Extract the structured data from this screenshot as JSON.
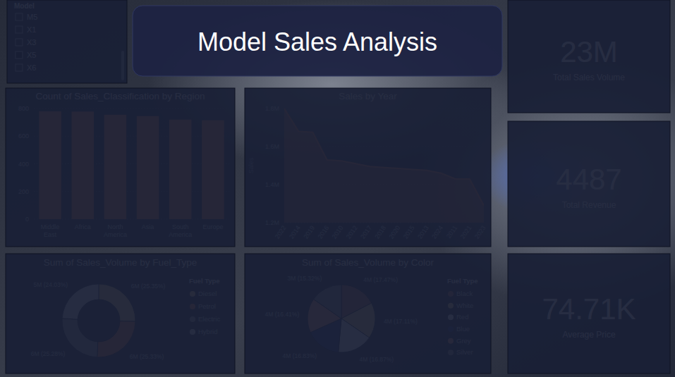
{
  "title": "Model Sales Analysis",
  "slicer": {
    "title": "Model",
    "items": [
      "M5",
      "X1",
      "X3",
      "X5",
      "X6"
    ],
    "selected": [
      "X5"
    ]
  },
  "kpis": [
    {
      "value": "23M",
      "label": "Total Sales Volume"
    },
    {
      "value": "4487",
      "label": "Total Revenue"
    },
    {
      "value": "74.71K",
      "label": "Average Price"
    }
  ],
  "chart_data": [
    {
      "type": "bar",
      "title": "Count of Sales_Classification by Region",
      "categories": [
        "Middle East",
        "Africa",
        "North America",
        "Asia",
        "South America",
        "Europe"
      ],
      "values": [
        780,
        778,
        755,
        745,
        720,
        715
      ],
      "color": "#ED8A5C",
      "ylim": [
        0,
        800
      ],
      "yticks": [
        0,
        200,
        400,
        600,
        800
      ],
      "grid": true
    },
    {
      "type": "area",
      "title": "Sales by Year",
      "y_label": "Sales",
      "categories": [
        "2022",
        "2014",
        "2019",
        "2016",
        "2010",
        "2012",
        "2017",
        "2018",
        "2020",
        "2015",
        "2013",
        "2024",
        "2011",
        "2021",
        "2023"
      ],
      "values": [
        1800000,
        1680000,
        1675000,
        1530000,
        1525000,
        1510000,
        1495000,
        1490000,
        1485000,
        1480000,
        1475000,
        1460000,
        1430000,
        1430000,
        1290000
      ],
      "color": "#ED8A5C",
      "ylim": [
        1200000,
        1800000
      ],
      "yticks": [
        {
          "value": 1200000,
          "label": "1.2M"
        },
        {
          "value": 1400000,
          "label": "1.4M"
        },
        {
          "value": 1600000,
          "label": "1.6M"
        },
        {
          "value": 1800000,
          "label": "1.8M"
        }
      ],
      "grid": true
    },
    {
      "type": "donut",
      "title": "Sum of Sales_Volume by Fuel_Type",
      "categories": [
        "Diesel",
        "Petrol",
        "Electric",
        "Hybrid"
      ],
      "values": [
        5779800,
        5775240,
        5763840,
        5478840
      ],
      "value_labels": [
        "6M (25.35%)",
        "6M (25.33%)",
        "6M (25.28%)",
        "5M (24.03%)"
      ],
      "colors": [
        "#F1DF94",
        "#EC8A55",
        "#A9A9A9",
        "#EFEFEF"
      ],
      "legend": "right",
      "legend_title": "Fuel Type",
      "data_labels": true
    },
    {
      "type": "pie",
      "title": "Sum of Sales_Volume by Color",
      "categories": [
        "Black",
        "White",
        "Red",
        "Blue",
        "Grey",
        "Silver"
      ],
      "values": [
        3983160,
        3901080,
        3846360,
        3837240,
        3741480,
        3492960
      ],
      "value_labels": [
        "4M (17.47%)",
        "4M (17.11%)",
        "4M (16.87%)",
        "4M (16.83%)",
        "4M (16.41%)",
        "3M (15.32%)"
      ],
      "colors": [
        "#B97A62",
        "#F1DF94",
        "#FFFFFF",
        "#3C4C8C",
        "#F2A285",
        "#9B9B9B"
      ],
      "legend": "right",
      "legend_title": "Fuel Type",
      "data_labels": true
    }
  ]
}
